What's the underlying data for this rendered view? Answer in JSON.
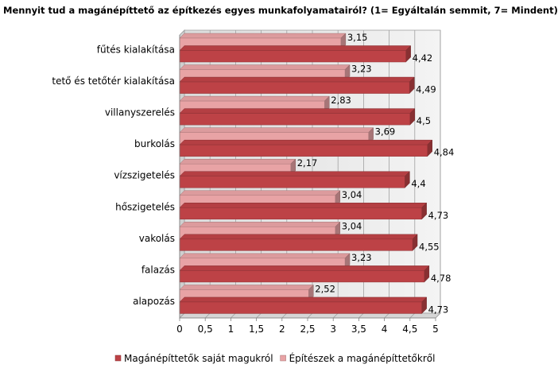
{
  "chart_data": {
    "type": "bar",
    "orientation": "horizontal",
    "title": "Mennyit tud a magánépíttető az építkezés egyes munkafolyamatairól? (1= Egyáltalán semmit, 7= Mindent)",
    "categories": [
      "fűtés kialakítása",
      "tető és tetőtér kialakítása",
      "villanyszerelés",
      "burkolás",
      "vízszigetelés",
      "hőszigetelés",
      "vakolás",
      "falazás",
      "alapozás"
    ],
    "series": [
      {
        "name": "Építészek a magánépíttetőkről",
        "color": "#e8a3a5",
        "values": [
          3.15,
          3.23,
          2.83,
          3.69,
          2.17,
          3.04,
          3.04,
          3.23,
          2.52
        ],
        "labels": [
          "3,15",
          "3,23",
          "2,83",
          "3,69",
          "2,17",
          "3,04",
          "3,04",
          "3,23",
          "2,52"
        ]
      },
      {
        "name": "Magánépíttetők saját magukról",
        "color": "#bd4246",
        "values": [
          4.42,
          4.49,
          4.5,
          4.84,
          4.4,
          4.73,
          4.55,
          4.78,
          4.73
        ],
        "labels": [
          "4,42",
          "4,49",
          "4,5",
          "4,84",
          "4,4",
          "4,73",
          "4,55",
          "4,78",
          "4,73"
        ]
      }
    ],
    "xlim": [
      0,
      5
    ],
    "x_ticks": [
      0,
      0.5,
      1,
      1.5,
      2,
      2.5,
      3,
      3.5,
      4,
      4.5,
      5
    ],
    "x_tick_labels": [
      "0",
      "0,5",
      "1",
      "1,5",
      "2",
      "2,5",
      "3",
      "3,5",
      "4",
      "4,5",
      "5"
    ],
    "grid": true,
    "legend_position": "bottom",
    "legend_order": [
      "Magánépíttetők saját magukról",
      "Építészek a magánépíttetőkről"
    ]
  }
}
